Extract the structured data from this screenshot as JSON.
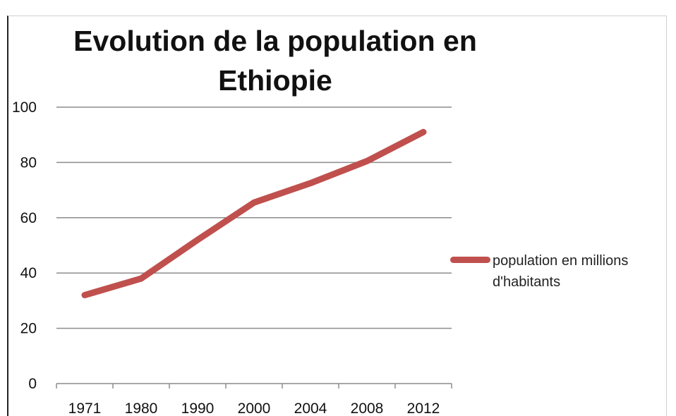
{
  "chart_data": {
    "type": "line",
    "title": "Evolution de la population en Ethiopie",
    "title_lines": [
      "Evolution de la population en",
      "Ethiopie"
    ],
    "xlabel": "",
    "ylabel": "",
    "categories": [
      "1971",
      "1980",
      "1990",
      "2000",
      "2004",
      "2008",
      "2012"
    ],
    "series": [
      {
        "name": "population en millions d'habitants",
        "values": [
          32,
          38,
          52,
          65.5,
          72.5,
          80.5,
          91
        ],
        "color": "#c0504d"
      }
    ],
    "ylim": [
      0,
      100
    ],
    "yticks": [
      0,
      20,
      40,
      60,
      80,
      100
    ],
    "grid": true,
    "legend": "right"
  }
}
